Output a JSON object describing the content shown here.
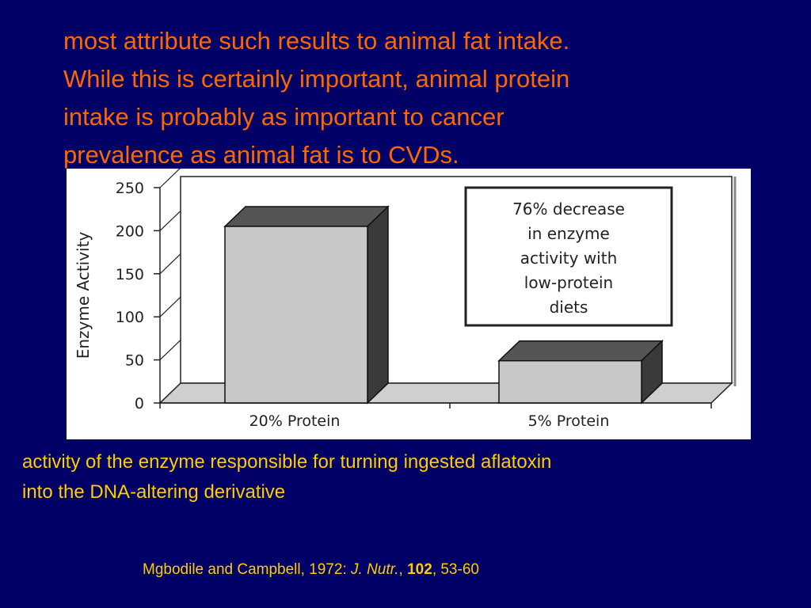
{
  "slide": {
    "intro_lines": [
      "most attribute such results to animal fat intake.",
      "While this is certainly important, animal protein",
      "intake is probably as important to cancer",
      "prevalence as animal fat is to CVDs."
    ],
    "caption_lines": [
      "activity of the enzyme responsible for turning ingested aflatoxin",
      "into the DNA-altering derivative"
    ],
    "citation": {
      "authors": "Mgbodile and Campbell, 1972: ",
      "journal": "J. Nutr.",
      "sep1": ", ",
      "volume": "102",
      "pages": ", 53-60"
    },
    "colors": {
      "background": "#000066",
      "intro_text": "#FF6600",
      "caption_text": "#FFCC00"
    }
  },
  "chart_data": {
    "type": "bar",
    "categories": [
      "20% Protein",
      "5% Protein"
    ],
    "values": [
      205,
      49
    ],
    "ylabel": "Enzyme Activity",
    "ylim": [
      0,
      250
    ],
    "yticks": [
      0,
      50,
      100,
      150,
      200,
      250
    ],
    "ytick_labels": [
      "0",
      "50",
      "100",
      "150",
      "200",
      "250"
    ],
    "annotation_lines": [
      "76% decrease",
      "in enzyme",
      "activity with",
      "low-protein",
      "diets"
    ],
    "colors": {
      "bar_front": "#C8C8C8",
      "bar_top": "#555555",
      "bar_side": "#3A3A3A"
    },
    "style": "3d",
    "grid": false
  }
}
